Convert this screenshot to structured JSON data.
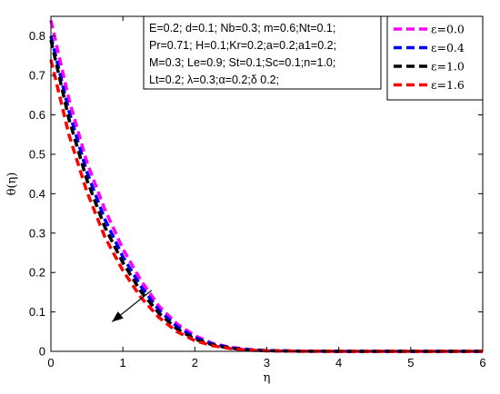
{
  "chart_data": {
    "type": "line",
    "xlabel": "η",
    "ylabel": "θ(η)",
    "xlim": [
      0,
      6
    ],
    "ylim": [
      0,
      0.85
    ],
    "xticks": [
      "0",
      "1",
      "2",
      "3",
      "4",
      "5",
      "6"
    ],
    "yticks": [
      "0",
      "0.1",
      "0.2",
      "0.3",
      "0.4",
      "0.5",
      "0.6",
      "0.7",
      "0.8"
    ],
    "grid": false,
    "legend_position": "top-right",
    "line_style": "dashed",
    "parameters_box": [
      "E=0.2; d=0.1; Nb=0.3; m=0.6;Nt=0.1;",
      "Pr=0.71; H=0.1;Kr=0.2;a=0.2;a1=0.2;",
      "M=0.3; Le=0.9; St=0.1;Sc=0.1;n=1.0;",
      "Lt=0.2; λ=0.3;α=0.2;δ 0.2;"
    ],
    "series": [
      {
        "name": "ε=0.0",
        "color": "#ff00ff",
        "x": [
          0,
          0.25,
          0.5,
          0.75,
          1.0,
          1.25,
          1.5,
          1.75,
          2.0,
          2.25,
          2.5,
          2.75,
          3.0,
          3.5,
          4.0,
          5.0,
          6.0
        ],
        "y": [
          0.84,
          0.64,
          0.48,
          0.36,
          0.26,
          0.18,
          0.115,
          0.07,
          0.04,
          0.02,
          0.01,
          0.005,
          0.002,
          0.0005,
          0.0001,
          0,
          0
        ]
      },
      {
        "name": "ε=0.4",
        "color": "#0000ff",
        "x": [
          0,
          0.25,
          0.5,
          0.75,
          1.0,
          1.25,
          1.5,
          1.75,
          2.0,
          2.25,
          2.5,
          2.75,
          3.0,
          3.5,
          4.0,
          5.0,
          6.0
        ],
        "y": [
          0.8,
          0.61,
          0.455,
          0.335,
          0.24,
          0.165,
          0.105,
          0.063,
          0.035,
          0.018,
          0.009,
          0.004,
          0.0018,
          0.0004,
          0.0001,
          0,
          0
        ]
      },
      {
        "name": "ε=1.0",
        "color": "#000000",
        "x": [
          0,
          0.25,
          0.5,
          0.75,
          1.0,
          1.25,
          1.5,
          1.75,
          2.0,
          2.25,
          2.5,
          2.75,
          3.0,
          3.5,
          4.0,
          5.0,
          6.0
        ],
        "y": [
          0.79,
          0.59,
          0.435,
          0.315,
          0.225,
          0.152,
          0.097,
          0.057,
          0.031,
          0.016,
          0.008,
          0.0035,
          0.0015,
          0.0003,
          0.0001,
          0,
          0
        ]
      },
      {
        "name": "ε=1.6",
        "color": "#ff0000",
        "x": [
          0,
          0.25,
          0.5,
          0.75,
          1.0,
          1.25,
          1.5,
          1.75,
          2.0,
          2.25,
          2.5,
          2.75,
          3.0,
          3.5,
          4.0,
          5.0,
          6.0
        ],
        "y": [
          0.74,
          0.55,
          0.405,
          0.29,
          0.205,
          0.137,
          0.086,
          0.05,
          0.027,
          0.014,
          0.007,
          0.003,
          0.0012,
          0.0003,
          0.0001,
          0,
          0
        ]
      }
    ],
    "annotation_arrow": {
      "from": [
        1.4,
        0.155
      ],
      "to": [
        0.85,
        0.075
      ]
    }
  }
}
